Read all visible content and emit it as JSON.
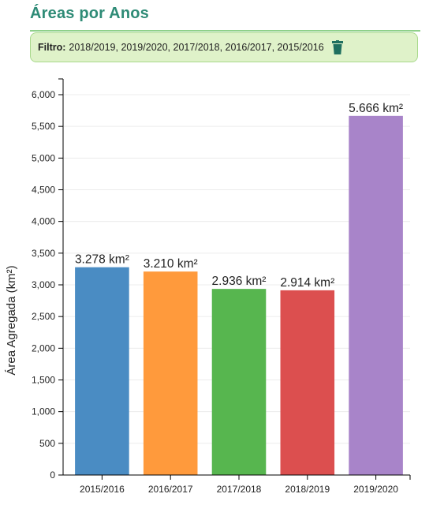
{
  "panel": {
    "title": "Áreas por Anos",
    "filter_label": "Filtro:",
    "filter_values": "2018/2019, 2019/2020, 2017/2018, 2016/2017, 2015/2016",
    "trash_icon": "trash-icon",
    "accent_color": "#2e8b76"
  },
  "chart_data": {
    "type": "bar",
    "categories": [
      "2015/2016",
      "2016/2017",
      "2017/2018",
      "2018/2019",
      "2019/2020"
    ],
    "values": [
      3278,
      3210,
      2936,
      2914,
      5666
    ],
    "data_labels": [
      "3.278 km²",
      "3.210 km²",
      "2.936 km²",
      "2.914 km²",
      "5.666 km²"
    ],
    "colors": [
      "#4a8cc3",
      "#ff9a3c",
      "#57b64f",
      "#dc4f4f",
      "#a884c9"
    ],
    "title": "",
    "xlabel": "",
    "ylabel": "Área Agregada (km²)",
    "ylim": [
      0,
      6000
    ],
    "yticks": [
      0,
      500,
      1000,
      1500,
      2000,
      2500,
      3000,
      3500,
      4000,
      4500,
      5000,
      5500,
      6000
    ],
    "ytick_labels": [
      "0",
      "500",
      "1,000",
      "1,500",
      "2,000",
      "2,500",
      "3,000",
      "3,500",
      "4,000",
      "4,500",
      "5,000",
      "5,500",
      "6,000"
    ],
    "grid": true
  }
}
